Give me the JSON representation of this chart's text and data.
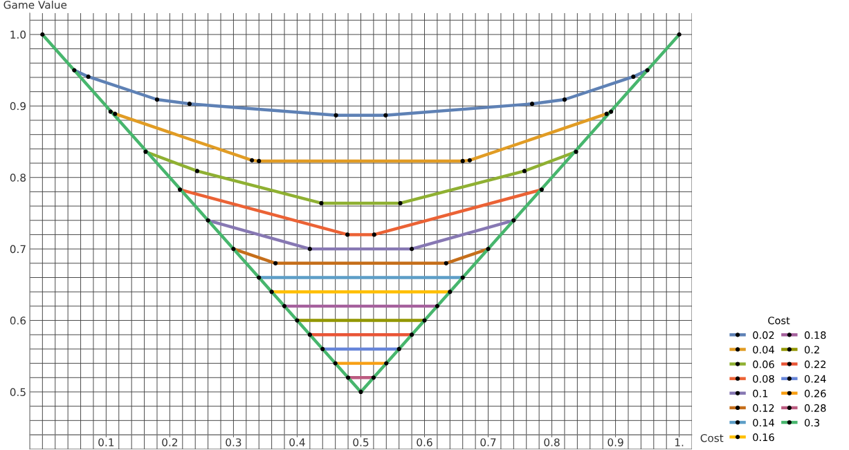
{
  "chart_data": {
    "type": "line",
    "xlabel": "Cost",
    "ylabel": "Game Value",
    "legend_title": "Cost",
    "xlim": [
      -0.02,
      1.02
    ],
    "ylim": [
      0.42,
      1.03
    ],
    "xticks": [
      0.1,
      0.2,
      0.3,
      0.4,
      0.5,
      0.6,
      0.7,
      0.8,
      0.9,
      {
        "value": 1,
        "label": "1."
      }
    ],
    "yticks": [
      0.5,
      0.6,
      0.7,
      0.8,
      0.9,
      {
        "value": 1,
        "label": "1.0"
      }
    ],
    "grid": true,
    "legend": "bottom right",
    "marker": "circle",
    "line_style": "solid",
    "series": [
      {
        "name": "0.02",
        "color": "#5e81b5",
        "x": [
          0.05,
          0.072,
          0.18,
          0.231,
          0.461,
          0.539,
          0.769,
          0.82,
          0.928,
          0.95
        ],
        "values": [
          0.95,
          0.941,
          0.909,
          0.903,
          0.887,
          0.887,
          0.903,
          0.909,
          0.941,
          0.95
        ]
      },
      {
        "name": "0.04",
        "color": "#e19c24",
        "x": [
          0.107,
          0.114,
          0.329,
          0.34,
          0.66,
          0.671,
          0.886,
          0.893
        ],
        "values": [
          0.892,
          0.889,
          0.824,
          0.823,
          0.823,
          0.824,
          0.889,
          0.892
        ]
      },
      {
        "name": "0.06",
        "color": "#8fb032",
        "x": [
          0.162,
          0.243,
          0.438,
          0.562,
          0.757,
          0.838
        ],
        "values": [
          0.836,
          0.809,
          0.764,
          0.764,
          0.809,
          0.836
        ]
      },
      {
        "name": "0.08",
        "color": "#eb6235",
        "x": [
          0.216,
          0.479,
          0.521,
          0.784
        ],
        "values": [
          0.783,
          0.72,
          0.72,
          0.783
        ]
      },
      {
        "name": "0.1",
        "color": "#8778b3",
        "x": [
          0.26,
          0.42,
          0.58,
          0.74
        ],
        "values": [
          0.74,
          0.7,
          0.7,
          0.74
        ]
      },
      {
        "name": "0.12",
        "color": "#c56e1a",
        "x": [
          0.3,
          0.366,
          0.634,
          0.7
        ],
        "values": [
          0.7,
          0.68,
          0.68,
          0.7
        ]
      },
      {
        "name": "0.14",
        "color": "#5d9ec7",
        "x": [
          0.34,
          0.66
        ],
        "values": [
          0.66,
          0.66
        ]
      },
      {
        "name": "0.16",
        "color": "#ffbf00",
        "x": [
          0.36,
          0.64
        ],
        "values": [
          0.64,
          0.64
        ]
      },
      {
        "name": "0.18",
        "color": "#a5609d",
        "x": [
          0.38,
          0.62
        ],
        "values": [
          0.62,
          0.62
        ]
      },
      {
        "name": "0.2",
        "color": "#929600",
        "x": [
          0.4,
          0.6
        ],
        "values": [
          0.6,
          0.6
        ]
      },
      {
        "name": "0.22",
        "color": "#e95536",
        "x": [
          0.42,
          0.58
        ],
        "values": [
          0.58,
          0.58
        ]
      },
      {
        "name": "0.24",
        "color": "#6685d9",
        "x": [
          0.44,
          0.56
        ],
        "values": [
          0.56,
          0.56
        ]
      },
      {
        "name": "0.26",
        "color": "#f89f13",
        "x": [
          0.46,
          0.54
        ],
        "values": [
          0.54,
          0.54
        ]
      },
      {
        "name": "0.28",
        "color": "#bc5b80",
        "x": [
          0.48,
          0.52
        ],
        "values": [
          0.52,
          0.52
        ]
      },
      {
        "name": "0.3",
        "color": "#47b66d",
        "x": [
          0,
          0.5,
          1
        ],
        "values": [
          1,
          0.5,
          1
        ]
      }
    ]
  }
}
